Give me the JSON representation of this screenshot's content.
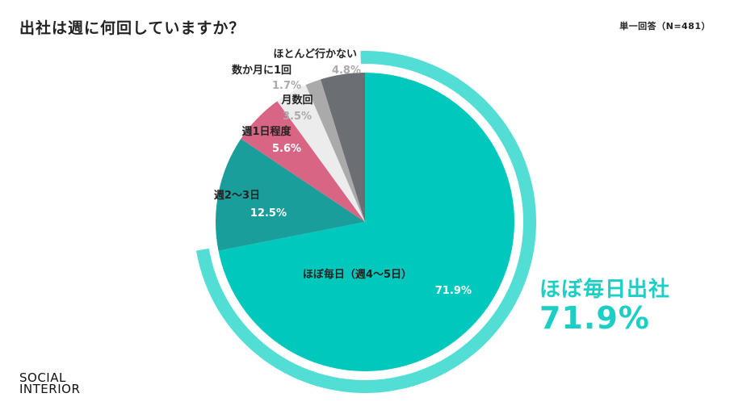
{
  "title": "出社は週に何回していますか？",
  "note": "単一回答（N=481）",
  "highlight": {
    "label": "ほぼ毎日出社",
    "value": "71.9%"
  },
  "logo": {
    "line1": "SOCIAL",
    "line2": "INTERIOR"
  },
  "colors": {
    "highlight_ring": "#52ddd5",
    "text_light": "#ffffff",
    "text_dark": "#222222",
    "text_grey": "#aaaaaa"
  },
  "chart_data": {
    "type": "pie",
    "title": "出社は週に何回していますか？",
    "slices": [
      {
        "label": "ほぼ毎日（週4〜5日）",
        "value": 71.9,
        "value_label": "71.9%",
        "color": "#00c8bd"
      },
      {
        "label": "週2〜3日",
        "value": 12.5,
        "value_label": "12.5%",
        "color": "#1a9e9c"
      },
      {
        "label": "週1日程度",
        "value": 5.6,
        "value_label": "5.6%",
        "color": "#d96585"
      },
      {
        "label": "月数回",
        "value": 3.5,
        "value_label": "3.5%",
        "color": "#ececec"
      },
      {
        "label": "数か月に1回",
        "value": 1.7,
        "value_label": "1.7%",
        "color": "#aaaaaa"
      },
      {
        "label": "ほとんど行かない",
        "value": 4.8,
        "value_label": "4.8%",
        "color": "#6b6f73"
      }
    ]
  }
}
